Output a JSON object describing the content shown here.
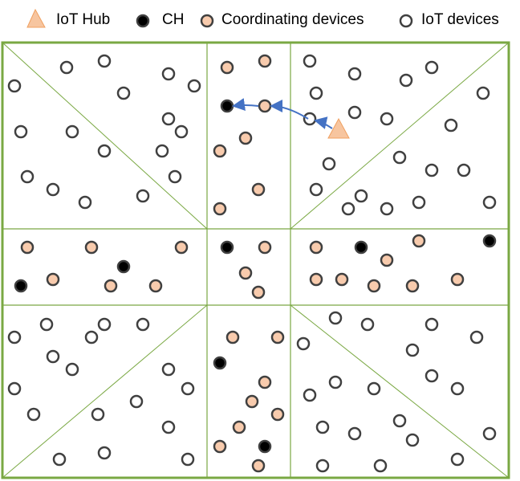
{
  "legend": {
    "hub_label": "IoT Hub",
    "ch_label": "CH",
    "coord_label": "Coordinating devices",
    "iot_label": "IoT devices"
  },
  "colors": {
    "hub_fill": "#f7c59f",
    "hub_stroke": "#f0a060",
    "ch_fill": "#000000",
    "coord_fill": "#f8cbad",
    "iot_fill": "#ffffff",
    "node_stroke": "#404040",
    "grid_line": "#7aa843",
    "arrow": "#4472c4"
  },
  "node_kinds": [
    "iot-device",
    "coordinating-device",
    "cluster-head",
    "iot-hub"
  ]
}
